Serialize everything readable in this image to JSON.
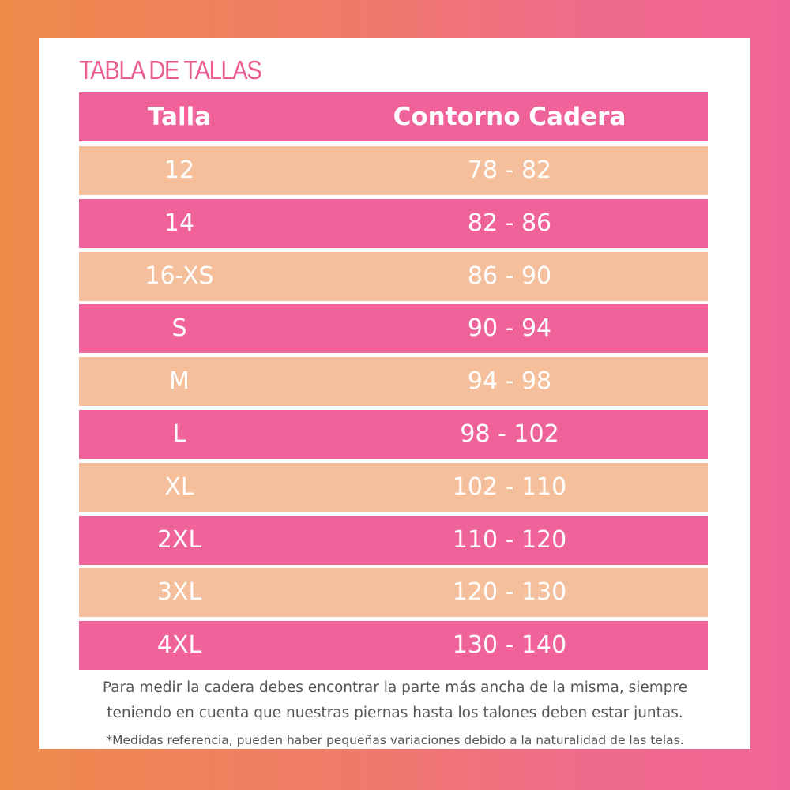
{
  "header": {
    "title": "TABLA DE TALLAS"
  },
  "table": {
    "columns": [
      "Talla",
      "Contorno Cadera"
    ],
    "rows": [
      [
        "12",
        "78 - 82"
      ],
      [
        "14",
        "82 - 86"
      ],
      [
        "16-XS",
        "86 - 90"
      ],
      [
        "S",
        "90 - 94"
      ],
      [
        "M",
        "94 - 98"
      ],
      [
        "L",
        "98 - 102"
      ],
      [
        "XL",
        "102 - 110"
      ],
      [
        "2XL",
        "110 - 120"
      ],
      [
        "3XL",
        "120 - 130"
      ],
      [
        "4XL",
        "130 - 140"
      ]
    ]
  },
  "notes": {
    "instructions": [
      "Para medir la cadera debes encontrar la parte más ancha de la misma, siempre",
      "teniendo en cuenta que nuestras piernas hasta los talones deben estar juntas."
    ],
    "disclaimer": "*Medidas referencia, pueden haber pequeñas variaciones debido a la naturalidad de las telas."
  }
}
